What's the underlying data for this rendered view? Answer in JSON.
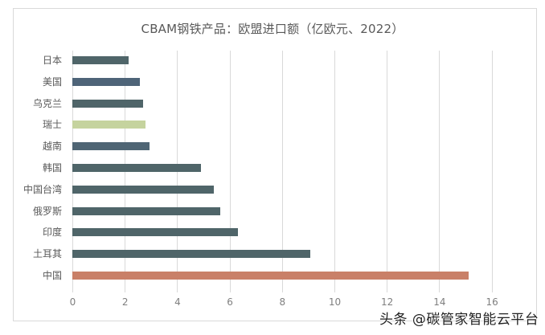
{
  "chart_data": {
    "type": "bar",
    "orientation": "horizontal",
    "title": "CBAM钢铁产品：欧盟进口额（亿欧元、2022）",
    "xlabel": "",
    "ylabel": "",
    "xlim": [
      0,
      16
    ],
    "xticks": [
      0,
      2,
      4,
      6,
      8,
      10,
      12,
      14,
      16
    ],
    "grid": true,
    "legend": null,
    "categories": [
      "日本",
      "美国",
      "乌克兰",
      "瑞士",
      "越南",
      "韩国",
      "中国台湾",
      "俄罗斯",
      "印度",
      "土耳其",
      "中国"
    ],
    "values": [
      2.16,
      2.57,
      2.69,
      2.78,
      2.93,
      4.91,
      5.4,
      5.65,
      6.32,
      9.07,
      15.13
    ],
    "colors": [
      "#4f6569",
      "#4e6478",
      "#4f6569",
      "#c5d39e",
      "#4f6574",
      "#4f6569",
      "#4f6569",
      "#4f6569",
      "#4f6569",
      "#4f6569",
      "#c98068"
    ]
  },
  "watermark": "头条 @碳管家智能云平台"
}
